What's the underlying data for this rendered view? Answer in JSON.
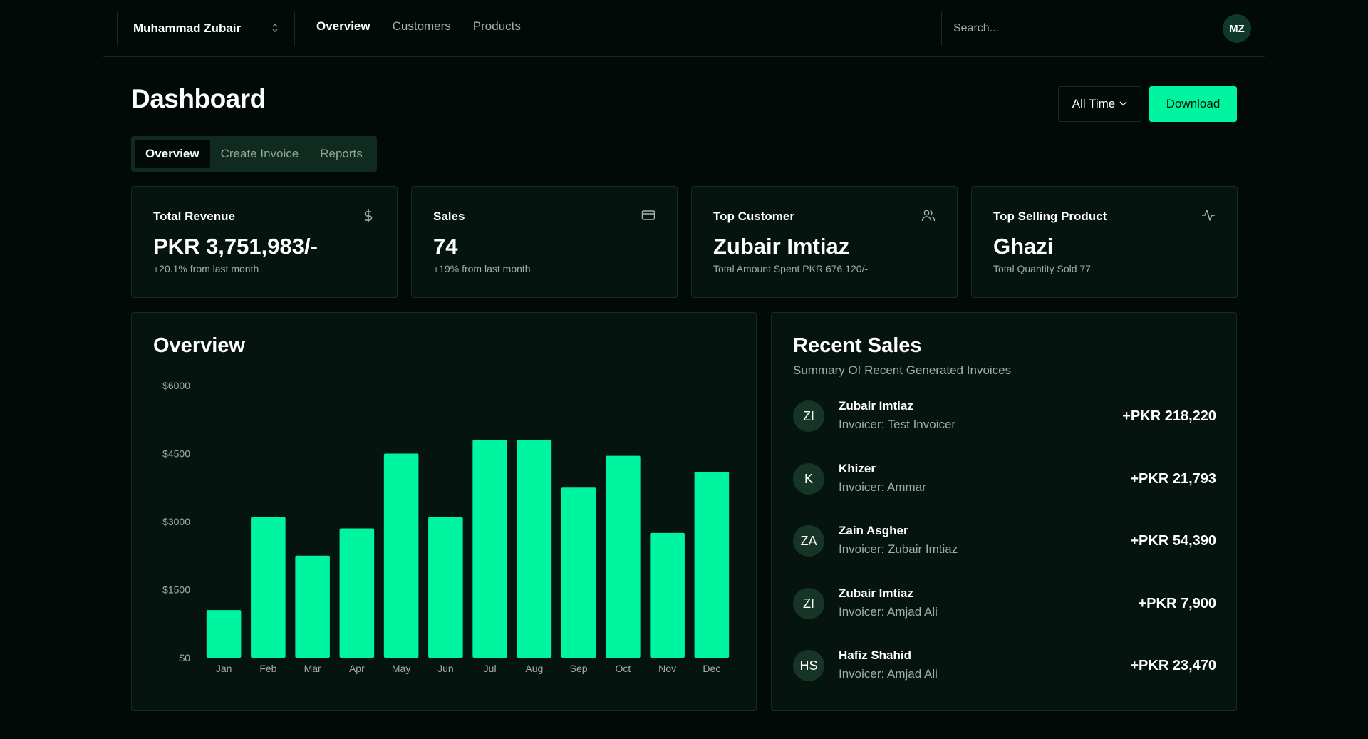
{
  "topbar": {
    "team_name": "Muhammad Zubair",
    "nav": [
      "Overview",
      "Customers",
      "Products"
    ],
    "active_nav": "Overview",
    "search_placeholder": "Search...",
    "avatar_initials": "MZ"
  },
  "header": {
    "title": "Dashboard",
    "range_label": "All Time",
    "download_label": "Download"
  },
  "tabs": [
    "Overview",
    "Create Invoice",
    "Reports"
  ],
  "stats": [
    {
      "label": "Total Revenue",
      "value": "PKR 3,751,983/-",
      "sub": "+20.1% from last month",
      "icon": "dollar-icon"
    },
    {
      "label": "Sales",
      "value": "74",
      "sub": "+19% from last month",
      "icon": "credit-card-icon"
    },
    {
      "label": "Top Customer",
      "value": "Zubair Imtiaz",
      "sub": "Total Amount Spent PKR 676,120/-",
      "icon": "users-icon"
    },
    {
      "label": "Top Selling Product",
      "value": "Ghazi",
      "sub": "Total Quantity Sold 77",
      "icon": "activity-icon"
    }
  ],
  "overview": {
    "title": "Overview"
  },
  "chart_data": {
    "type": "bar",
    "categories": [
      "Jan",
      "Feb",
      "Mar",
      "Apr",
      "May",
      "Jun",
      "Jul",
      "Aug",
      "Sep",
      "Oct",
      "Nov",
      "Dec"
    ],
    "values": [
      1050,
      3100,
      2250,
      2850,
      4500,
      3100,
      4800,
      4800,
      3750,
      4450,
      2750,
      4100
    ],
    "ytick_labels": [
      "$0",
      "$1500",
      "$3000",
      "$4500",
      "$6000"
    ],
    "ytick_values": [
      0,
      1500,
      3000,
      4500,
      6000
    ],
    "ylim": [
      0,
      6000
    ],
    "bar_color": "#00f5a0",
    "grid": false
  },
  "recent": {
    "title": "Recent Sales",
    "subtitle": "Summary Of Recent Generated Invoices",
    "sales": [
      {
        "initials": "ZI",
        "name": "Zubair Imtiaz",
        "invoicer": "Invoicer: Test Invoicer",
        "amount": "+PKR 218,220"
      },
      {
        "initials": "K",
        "name": "Khizer",
        "invoicer": "Invoicer: Ammar",
        "amount": "+PKR 21,793"
      },
      {
        "initials": "ZA",
        "name": "Zain Asgher",
        "invoicer": "Invoicer: Zubair Imtiaz",
        "amount": "+PKR 54,390"
      },
      {
        "initials": "ZI",
        "name": "Zubair Imtiaz",
        "invoicer": "Invoicer: Amjad Ali",
        "amount": "+PKR 7,900"
      },
      {
        "initials": "HS",
        "name": "Hafiz Shahid",
        "invoicer": "Invoicer: Amjad Ali",
        "amount": "+PKR 23,470"
      }
    ]
  },
  "colors": {
    "background": "#020a07",
    "card": "#061410",
    "accent": "#00f5a0",
    "muted_text": "#a0aca6"
  }
}
